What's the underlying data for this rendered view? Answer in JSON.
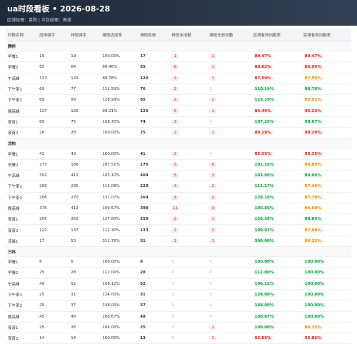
{
  "header": {
    "title": "ua时段看板 • 2026-08-28",
    "subtitle": "区域经理：袁阳 | 众包经理：高波"
  },
  "table": {
    "columns": [
      "时段名称",
      "应排骑手",
      "排班骑手",
      "排班达成率",
      "排班有效",
      "排班未出勤",
      "排班无效出勤",
      "应排有效出勤率",
      "实排有效出勤率"
    ],
    "groups": [
      {
        "name": "腾桥",
        "rows": [
          {
            "cells": [
              "早餐1",
              19,
              19,
              "100.00%",
              17,
              1,
              1,
              "89.47%",
              "89.47%"
            ],
            "colors": [
              "red",
              "red"
            ]
          },
          {
            "cells": [
              "早餐2",
              65,
              64,
              "98.46%",
              55,
              8,
              1,
              "84.62%",
              "85.94%"
            ],
            "colors": [
              "red",
              "red"
            ]
          },
          {
            "cells": [
              "午高峰",
              137,
              123,
              "89.78%",
              120,
              2,
              1,
              "87.59%",
              "97.56%"
            ],
            "colors": [
              "red",
              "orange"
            ]
          },
          {
            "cells": [
              "下午茶1",
              69,
              77,
              "111.59%",
              76,
              2,
              0,
              "110.14%",
              "98.70%"
            ],
            "colors": [
              "green",
              "green"
            ]
          },
          {
            "cells": [
              "下午茶2",
              69,
              89,
              "128.99%",
              85,
              2,
              2,
              "123.19%",
              "95.51%"
            ],
            "colors": [
              "green",
              "orange"
            ]
          },
          {
            "cells": [
              "晚高峰",
              127,
              126,
              "99.21%",
              120,
              5,
              1,
              "94.49%",
              "95.24%"
            ],
            "colors": [
              "red",
              "red"
            ]
          },
          {
            "cells": [
              "夜宵1",
              69,
              75,
              "108.70%",
              74,
              3,
              0,
              "107.25%",
              "98.67%"
            ],
            "colors": [
              "green",
              "green"
            ]
          },
          {
            "cells": [
              "夜宵2",
              28,
              28,
              "100.00%",
              25,
              2,
              1,
              "89.29%",
              "89.29%"
            ],
            "colors": [
              "red",
              "red"
            ]
          }
        ]
      },
      {
        "name": "龙柏",
        "rows": [
          {
            "cells": [
              "早餐1",
              43,
              43,
              "100.00%",
              41,
              2,
              0,
              "95.35%",
              "95.35%"
            ],
            "colors": [
              "red",
              "red"
            ]
          },
          {
            "cells": [
              "早餐2",
              173,
              186,
              "107.51%",
              175,
              5,
              6,
              "101.16%",
              "94.09%"
            ],
            "colors": [
              "green",
              "orange"
            ]
          },
          {
            "cells": [
              "午高峰",
              392,
              412,
              "105.10%",
              404,
              5,
              3,
              "103.06%",
              "98.06%"
            ],
            "colors": [
              "green",
              "green"
            ]
          },
          {
            "cells": [
              "下午茶1",
              206,
              235,
              "114.08%",
              229,
              4,
              2,
              "111.17%",
              "97.45%"
            ],
            "colors": [
              "green",
              "orange"
            ]
          },
          {
            "cells": [
              "下午茶2",
              206,
              270,
              "131.07%",
              264,
              4,
              2,
              "128.16%",
              "97.78%"
            ],
            "colors": [
              "green",
              "orange"
            ]
          },
          {
            "cells": [
              "晚高峰",
              376,
              412,
              "109.57%",
              398,
              11,
              3,
              "105.85%",
              "96.60%"
            ],
            "colors": [
              "green",
              "orange"
            ]
          },
          {
            "cells": [
              "夜宵1",
              205,
              262,
              "127.80%",
              259,
              2,
              1,
              "126.34%",
              "98.85%"
            ],
            "colors": [
              "green",
              "green"
            ]
          },
          {
            "cells": [
              "夜宵2",
              122,
              137,
              "112.30%",
              133,
              2,
              2,
              "109.02%",
              "97.08%"
            ],
            "colors": [
              "green",
              "orange"
            ]
          },
          {
            "cells": [
              "凌晨1",
              17,
              53,
              "311.76%",
              51,
              1,
              1,
              "300.00%",
              "96.23%"
            ],
            "colors": [
              "green",
              "orange"
            ]
          }
        ]
      },
      {
        "name": "万科",
        "rows": [
          {
            "cells": [
              "早餐1",
              6,
              6,
              "100.00%",
              6,
              0,
              0,
              "100.00%",
              "100.00%"
            ],
            "colors": [
              "green",
              "green"
            ]
          },
          {
            "cells": [
              "早餐2",
              25,
              28,
              "112.00%",
              28,
              0,
              0,
              "112.00%",
              "100.00%"
            ],
            "colors": [
              "green",
              "green"
            ]
          },
          {
            "cells": [
              "午高峰",
              49,
              52,
              "106.12%",
              52,
              0,
              0,
              "106.12%",
              "100.00%"
            ],
            "colors": [
              "green",
              "green"
            ]
          },
          {
            "cells": [
              "下午茶1",
              25,
              31,
              "124.00%",
              31,
              0,
              0,
              "124.00%",
              "100.00%"
            ],
            "colors": [
              "green",
              "green"
            ]
          },
          {
            "cells": [
              "下午茶2",
              25,
              37,
              "148.00%",
              37,
              0,
              0,
              "148.00%",
              "100.00%"
            ],
            "colors": [
              "green",
              "green"
            ]
          },
          {
            "cells": [
              "晚高峰",
              45,
              48,
              "106.67%",
              48,
              0,
              0,
              "106.67%",
              "100.00%"
            ],
            "colors": [
              "green",
              "green"
            ]
          },
          {
            "cells": [
              "夜宵1",
              25,
              26,
              "104.00%",
              25,
              0,
              1,
              "100.00%",
              "96.15%"
            ],
            "colors": [
              "green",
              "orange"
            ]
          },
          {
            "cells": [
              "夜宵2",
              14,
              14,
              "100.00%",
              13,
              0,
              1,
              "92.86%",
              "92.86%"
            ],
            "colors": [
              "red",
              "red"
            ]
          }
        ]
      }
    ]
  }
}
